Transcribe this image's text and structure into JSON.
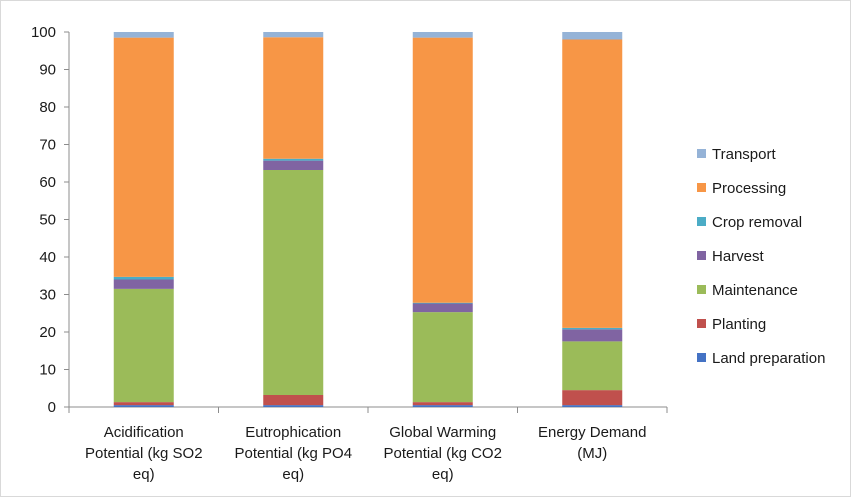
{
  "chart_data": {
    "type": "bar",
    "stacked": true,
    "title": "",
    "xlabel": "",
    "ylabel": "",
    "ylim": [
      0,
      100
    ],
    "yticks": [
      0,
      10,
      20,
      30,
      40,
      50,
      60,
      70,
      80,
      90,
      100
    ],
    "grid": false,
    "legend_position": "right",
    "categories": [
      [
        "Acidification",
        "Potential (kg SO2",
        "eq)"
      ],
      [
        "Eutrophication",
        "Potential (kg PO4",
        "eq)"
      ],
      [
        "Global Warming",
        "Potential (kg CO2",
        "eq)"
      ],
      [
        "Energy Demand",
        "(MJ)"
      ]
    ],
    "series": [
      {
        "name": "Land preparation",
        "color": "#4472c4",
        "values": [
          0.5,
          0.5,
          0.5,
          0.5
        ]
      },
      {
        "name": "Planting",
        "color": "#c0504d",
        "values": [
          0.8,
          2.7,
          0.8,
          4.0
        ]
      },
      {
        "name": "Maintenance",
        "color": "#9bbb59",
        "values": [
          30.2,
          60.0,
          24.0,
          13.0
        ]
      },
      {
        "name": "Harvest",
        "color": "#8064a2",
        "values": [
          2.5,
          2.5,
          2.3,
          3.2
        ]
      },
      {
        "name": "Crop removal",
        "color": "#4bacc6",
        "values": [
          0.7,
          0.5,
          0.2,
          0.4
        ]
      },
      {
        "name": "Processing",
        "color": "#f79646",
        "values": [
          63.8,
          32.4,
          70.7,
          76.9
        ]
      },
      {
        "name": "Transport",
        "color": "#95b3d7",
        "values": [
          1.5,
          1.4,
          1.5,
          2.0
        ]
      }
    ],
    "legend_order": [
      "Transport",
      "Processing",
      "Crop removal",
      "Harvest",
      "Maintenance",
      "Planting",
      "Land preparation"
    ]
  }
}
